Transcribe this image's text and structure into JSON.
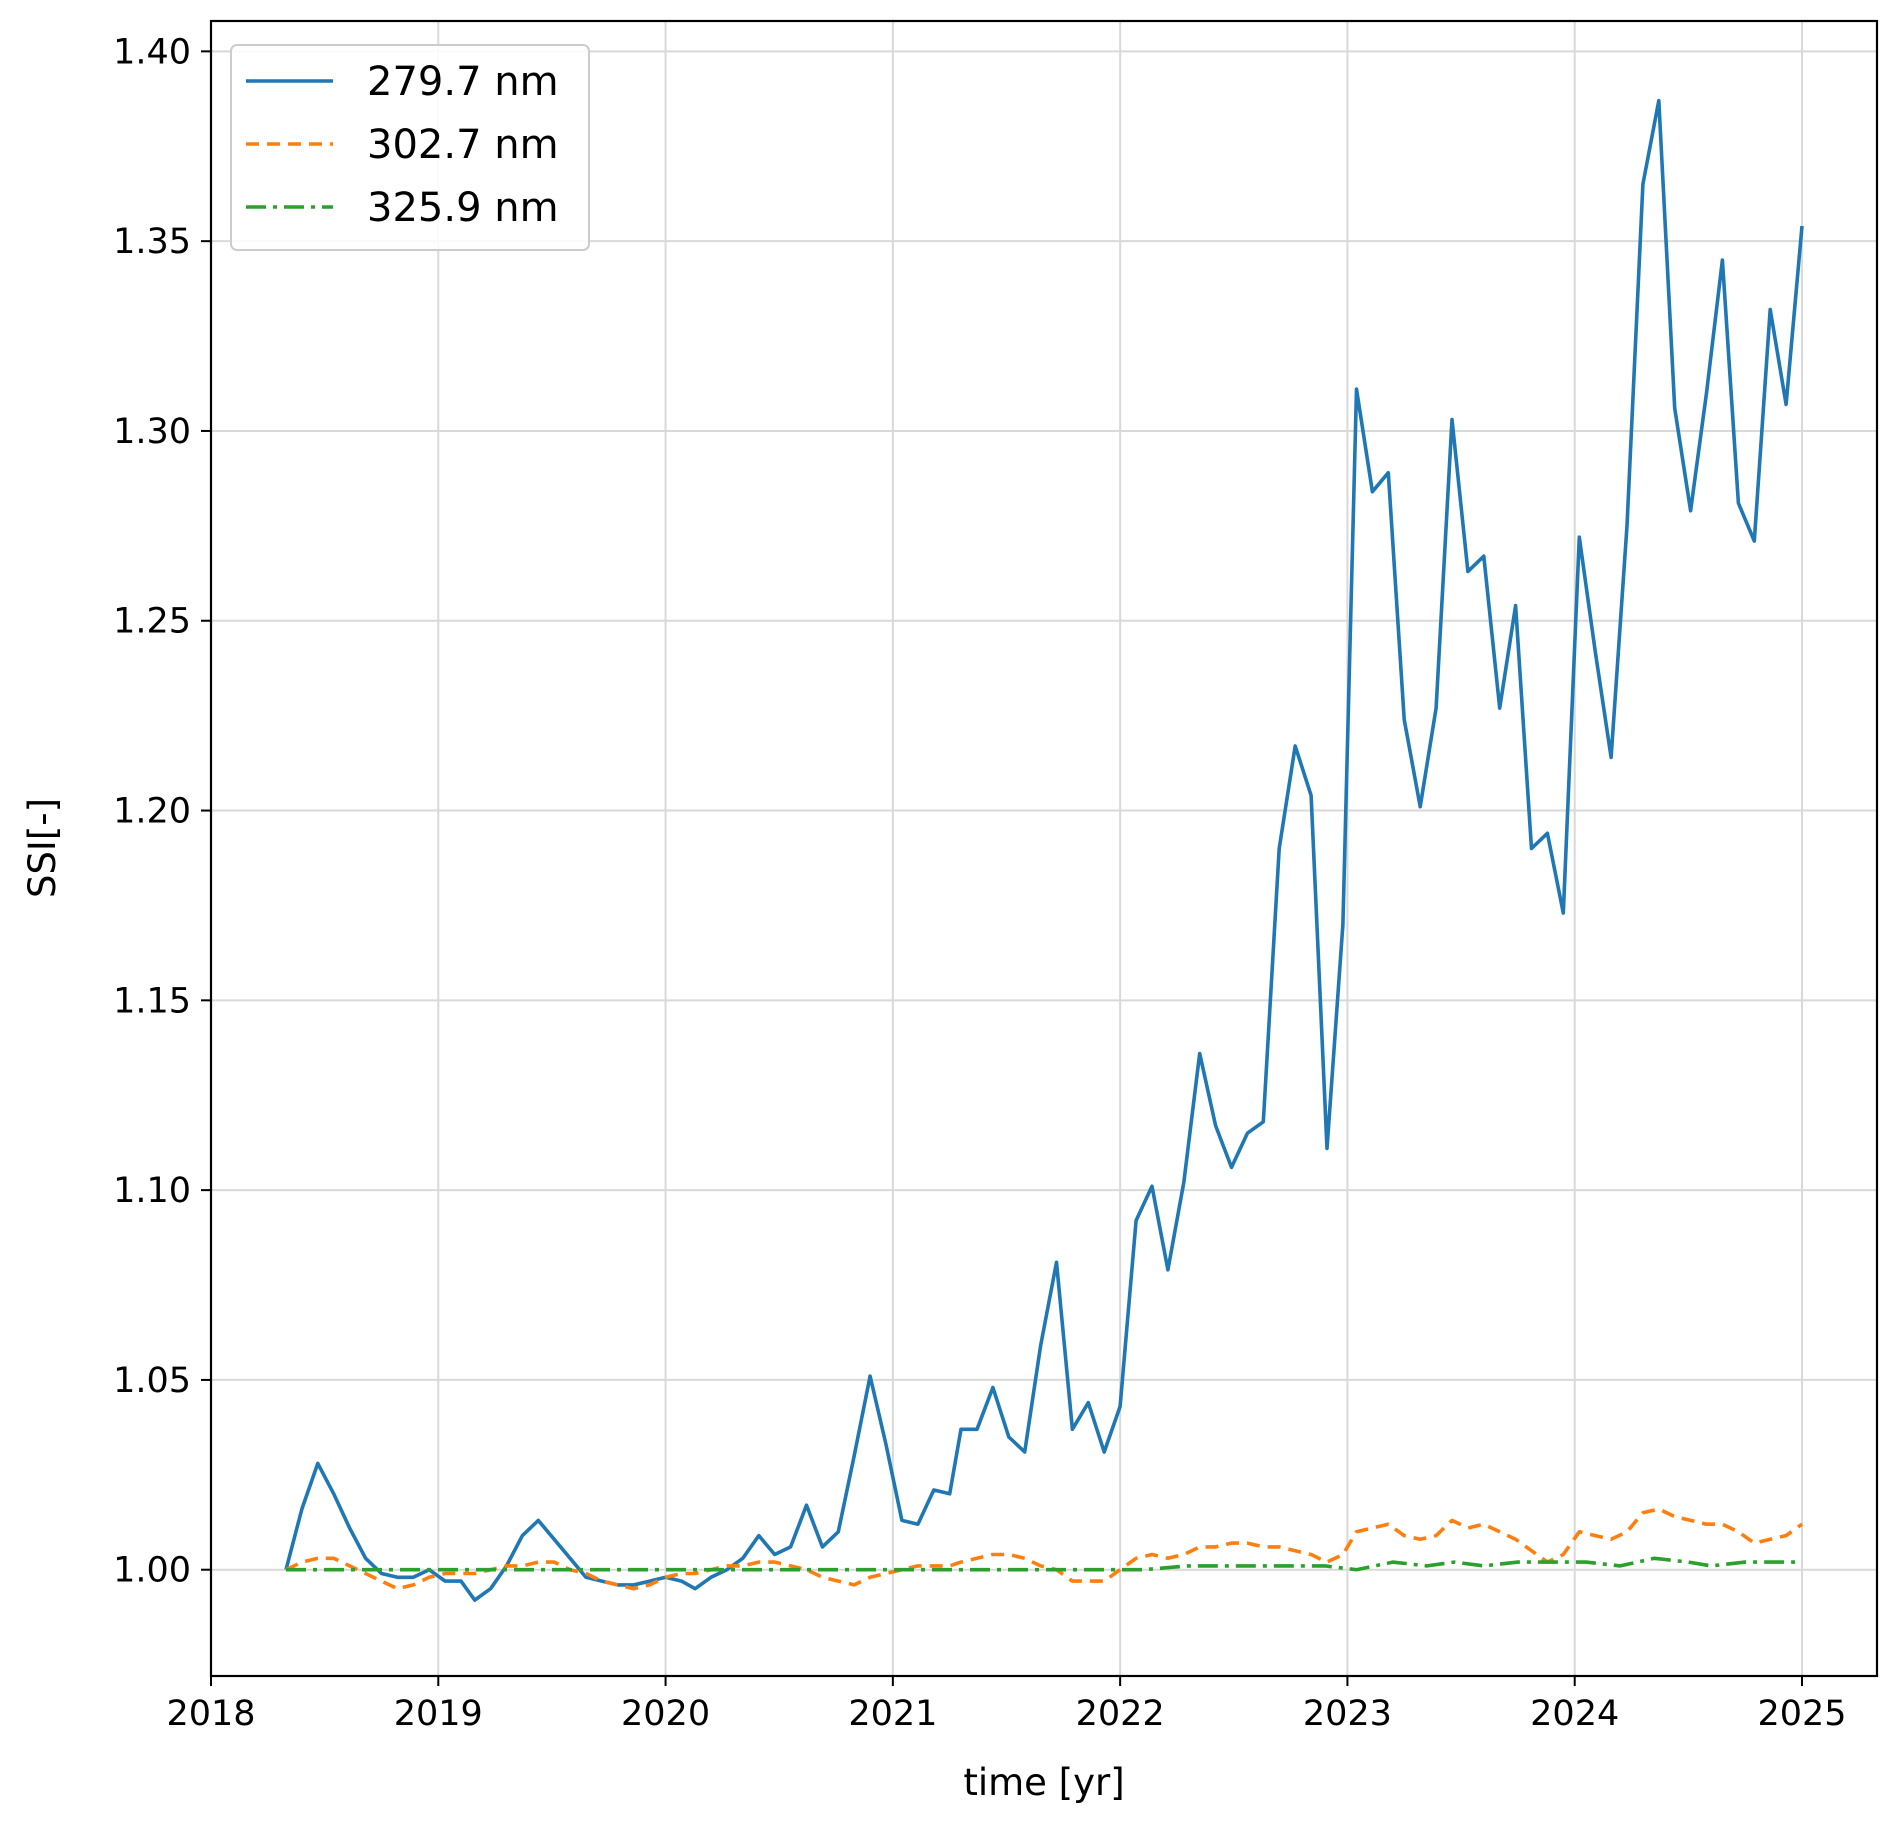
{
  "chart_data": {
    "type": "line",
    "xlabel": "time [yr]",
    "ylabel": "SSI[-]",
    "xlim": [
      2018.0,
      2025.33
    ],
    "ylim": [
      0.972,
      1.408
    ],
    "xticks": [
      2018,
      2019,
      2020,
      2021,
      2022,
      2023,
      2024,
      2025
    ],
    "xtick_labels": [
      "2018",
      "2019",
      "2020",
      "2021",
      "2022",
      "2023",
      "2024",
      "2025"
    ],
    "yticks": [
      1.0,
      1.05,
      1.1,
      1.15,
      1.2,
      1.25,
      1.3,
      1.35,
      1.4
    ],
    "ytick_labels": [
      "1.00",
      "1.05",
      "1.10",
      "1.15",
      "1.20",
      "1.25",
      "1.30",
      "1.35",
      "1.40"
    ],
    "grid": true,
    "legend_position": "top-left",
    "series": [
      {
        "name": "279.7 nm",
        "color": "#1f77b4",
        "dash": "solid",
        "x": [
          2018.33,
          2018.4,
          2018.47,
          2018.54,
          2018.61,
          2018.68,
          2018.75,
          2018.82,
          2018.89,
          2018.96,
          2019.03,
          2019.1,
          2019.16,
          2019.23,
          2019.3,
          2019.37,
          2019.44,
          2019.51,
          2019.58,
          2019.65,
          2019.72,
          2019.79,
          2019.86,
          2019.93,
          2020.0,
          2020.07,
          2020.13,
          2020.2,
          2020.27,
          2020.34,
          2020.41,
          2020.48,
          2020.55,
          2020.62,
          2020.69,
          2020.76,
          2020.83,
          2020.9,
          2020.97,
          2021.04,
          2021.11,
          2021.18,
          2021.25,
          2021.3,
          2021.37,
          2021.44,
          2021.51,
          2021.58,
          2021.65,
          2021.72,
          2021.79,
          2021.86,
          2021.93,
          2022.0,
          2022.07,
          2022.14,
          2022.21,
          2022.28,
          2022.35,
          2022.42,
          2022.49,
          2022.56,
          2022.63,
          2022.7,
          2022.77,
          2022.84,
          2022.91,
          2022.98,
          2023.04,
          2023.11,
          2023.18,
          2023.25,
          2023.32,
          2023.39,
          2023.46,
          2023.53,
          2023.6,
          2023.67,
          2023.74,
          2023.81,
          2023.88,
          2023.95,
          2024.02,
          2024.09,
          2024.16,
          2024.23,
          2024.3,
          2024.37,
          2024.44,
          2024.51,
          2024.58,
          2024.65,
          2024.72,
          2024.79,
          2024.86,
          2024.93,
          2025.0
        ],
        "y": [
          1.0,
          1.016,
          1.028,
          1.02,
          1.011,
          1.003,
          0.999,
          0.998,
          0.998,
          1.0,
          0.997,
          0.997,
          0.992,
          0.995,
          1.001,
          1.009,
          1.013,
          1.008,
          1.003,
          0.998,
          0.997,
          0.996,
          0.996,
          0.997,
          0.998,
          0.997,
          0.995,
          0.998,
          1.0,
          1.003,
          1.009,
          1.004,
          1.006,
          1.017,
          1.006,
          1.01,
          1.03,
          1.051,
          1.033,
          1.013,
          1.012,
          1.021,
          1.02,
          1.037,
          1.037,
          1.048,
          1.035,
          1.031,
          1.059,
          1.081,
          1.037,
          1.044,
          1.031,
          1.043,
          1.092,
          1.101,
          1.079,
          1.102,
          1.136,
          1.117,
          1.106,
          1.115,
          1.118,
          1.19,
          1.217,
          1.204,
          1.111,
          1.17,
          1.311,
          1.284,
          1.289,
          1.224,
          1.201,
          1.227,
          1.303,
          1.263,
          1.267,
          1.227,
          1.254,
          1.19,
          1.194,
          1.173,
          1.272,
          1.242,
          1.214,
          1.275,
          1.365,
          1.387,
          1.306,
          1.279,
          1.31,
          1.345,
          1.281,
          1.271,
          1.332,
          1.307,
          1.354
        ]
      },
      {
        "name": "302.7 nm",
        "color": "#ff7f0e",
        "dash": "dashed",
        "x": [
          2018.33,
          2018.4,
          2018.47,
          2018.54,
          2018.61,
          2018.68,
          2018.75,
          2018.82,
          2018.89,
          2018.96,
          2019.03,
          2019.1,
          2019.16,
          2019.23,
          2019.3,
          2019.37,
          2019.44,
          2019.51,
          2019.58,
          2019.65,
          2019.72,
          2019.79,
          2019.86,
          2019.93,
          2020.0,
          2020.07,
          2020.13,
          2020.2,
          2020.27,
          2020.34,
          2020.41,
          2020.48,
          2020.55,
          2020.62,
          2020.69,
          2020.76,
          2020.83,
          2020.9,
          2020.97,
          2021.04,
          2021.11,
          2021.18,
          2021.25,
          2021.3,
          2021.37,
          2021.44,
          2021.51,
          2021.58,
          2021.65,
          2021.72,
          2021.79,
          2021.86,
          2021.93,
          2022.0,
          2022.07,
          2022.14,
          2022.21,
          2022.28,
          2022.35,
          2022.42,
          2022.49,
          2022.56,
          2022.63,
          2022.7,
          2022.77,
          2022.84,
          2022.91,
          2022.98,
          2023.04,
          2023.11,
          2023.18,
          2023.25,
          2023.32,
          2023.39,
          2023.46,
          2023.53,
          2023.6,
          2023.67,
          2023.74,
          2023.81,
          2023.88,
          2023.95,
          2024.02,
          2024.09,
          2024.16,
          2024.23,
          2024.3,
          2024.37,
          2024.44,
          2024.51,
          2024.58,
          2024.65,
          2024.72,
          2024.79,
          2024.86,
          2024.93,
          2025.0
        ],
        "y": [
          1.0,
          1.002,
          1.003,
          1.003,
          1.001,
          0.999,
          0.997,
          0.995,
          0.996,
          0.998,
          0.999,
          0.999,
          0.999,
          1.0,
          1.001,
          1.001,
          1.002,
          1.002,
          1.0,
          0.999,
          0.997,
          0.996,
          0.995,
          0.996,
          0.998,
          0.999,
          0.999,
          1.0,
          1.001,
          1.001,
          1.002,
          1.002,
          1.001,
          1.0,
          0.998,
          0.997,
          0.996,
          0.998,
          0.999,
          1.0,
          1.001,
          1.001,
          1.001,
          1.002,
          1.003,
          1.004,
          1.004,
          1.003,
          1.001,
          1.0,
          0.997,
          0.997,
          0.997,
          1.0,
          1.003,
          1.004,
          1.003,
          1.004,
          1.006,
          1.006,
          1.007,
          1.007,
          1.006,
          1.006,
          1.005,
          1.004,
          1.002,
          1.004,
          1.01,
          1.011,
          1.012,
          1.009,
          1.008,
          1.009,
          1.013,
          1.011,
          1.012,
          1.01,
          1.008,
          1.005,
          1.002,
          1.004,
          1.01,
          1.009,
          1.008,
          1.01,
          1.015,
          1.016,
          1.014,
          1.013,
          1.012,
          1.012,
          1.01,
          1.007,
          1.008,
          1.009,
          1.012
        ]
      },
      {
        "name": "325.9 nm",
        "color": "#2ca02c",
        "dash": "dashdot",
        "x": [
          2018.33,
          2018.5,
          2018.7,
          2018.9,
          2019.1,
          2019.3,
          2019.5,
          2019.7,
          2019.9,
          2020.1,
          2020.3,
          2020.5,
          2020.7,
          2020.9,
          2021.1,
          2021.3,
          2021.5,
          2021.7,
          2021.9,
          2022.1,
          2022.3,
          2022.5,
          2022.7,
          2022.9,
          2023.04,
          2023.2,
          2023.35,
          2023.47,
          2023.6,
          2023.75,
          2023.9,
          2024.05,
          2024.2,
          2024.35,
          2024.5,
          2024.6,
          2024.75,
          2024.9,
          2025.0
        ],
        "y": [
          1.0,
          1.0,
          1.0,
          1.0,
          1.0,
          1.0,
          1.0,
          1.0,
          1.0,
          1.0,
          1.0,
          1.0,
          1.0,
          1.0,
          1.0,
          1.0,
          1.0,
          1.0,
          1.0,
          1.0,
          1.001,
          1.001,
          1.001,
          1.001,
          1.0,
          1.002,
          1.001,
          1.002,
          1.001,
          1.002,
          1.002,
          1.002,
          1.001,
          1.003,
          1.002,
          1.001,
          1.002,
          1.002,
          1.002
        ]
      }
    ]
  }
}
